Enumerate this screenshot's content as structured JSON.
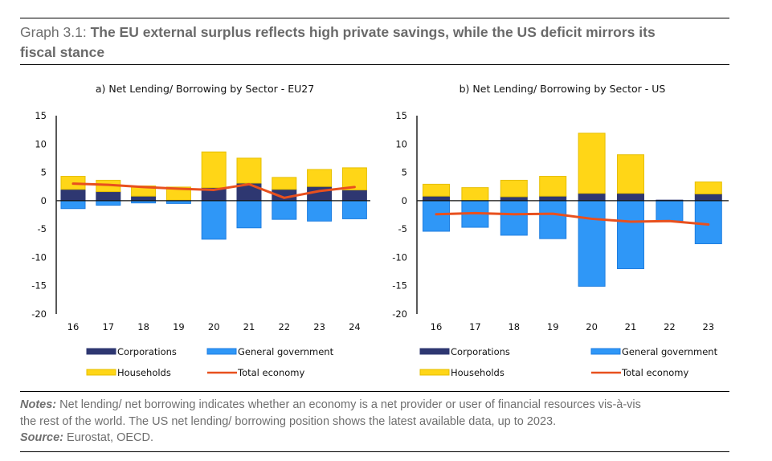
{
  "header": {
    "label": "Graph 3.1: ",
    "title_line1": "The EU external surplus reflects high private savings, while the US deficit mirrors its",
    "title_line2": "fiscal stance"
  },
  "footer": {
    "notes_label": "Notes:",
    "notes_text_line1": " Net lending/ net borrowing indicates whether an economy is a net provider or user of financial resources vis-à-vis",
    "notes_text_line2": "the rest of the world. The US net lending/ borrowing position shows the latest available data, up to 2023.",
    "source_label": "Source:",
    "source_text": " Eurostat, OECD."
  },
  "colors": {
    "corporations": "#2e3771",
    "general_government": "#2f97f7",
    "general_government_border": "#1f7ee0",
    "households": "#ffd617",
    "households_border": "#e6bf00",
    "total_economy": "#e8501e"
  },
  "chart_data": [
    {
      "type": "bar",
      "stacked": true,
      "title": "a) Net Lending/ Borrowing by Sector - EU27",
      "xlabel": "",
      "ylabel": "",
      "ylim": [
        -20,
        15
      ],
      "yticks": [
        15,
        10,
        5,
        0,
        -5,
        -10,
        -15,
        -20
      ],
      "categories": [
        "16",
        "17",
        "18",
        "19",
        "20",
        "21",
        "22",
        "23",
        "24"
      ],
      "series": [
        {
          "name": "Corporations",
          "kind": "bar",
          "values": [
            2.0,
            1.6,
            0.8,
            0.1,
            2.3,
            3.1,
            2.0,
            2.5,
            1.9
          ]
        },
        {
          "name": "Households",
          "kind": "bar",
          "values": [
            2.3,
            2.0,
            1.8,
            2.3,
            6.3,
            4.4,
            2.1,
            3.0,
            3.9
          ]
        },
        {
          "name": "General government",
          "kind": "bar",
          "values": [
            -1.4,
            -0.8,
            -0.4,
            -0.5,
            -6.8,
            -4.8,
            -3.3,
            -3.6,
            -3.2
          ]
        },
        {
          "name": "Total economy",
          "kind": "line",
          "values": [
            3.0,
            2.8,
            2.4,
            2.1,
            1.9,
            2.9,
            0.5,
            1.7,
            2.4
          ]
        }
      ],
      "legend": [
        "Corporations",
        "General government",
        "Households",
        "Total economy"
      ],
      "legend_placement": "bottom",
      "grid": false
    },
    {
      "type": "bar",
      "stacked": true,
      "title": "b) Net Lending/ Borrowing by Sector - US",
      "xlabel": "",
      "ylabel": "",
      "ylim": [
        -20,
        15
      ],
      "yticks": [
        15,
        10,
        5,
        0,
        -5,
        -10,
        -15,
        -20
      ],
      "categories": [
        "16",
        "17",
        "18",
        "19",
        "20",
        "21",
        "22",
        "23"
      ],
      "series": [
        {
          "name": "Corporations",
          "kind": "bar",
          "values": [
            0.8,
            0.0,
            0.7,
            0.8,
            1.3,
            1.3,
            0.1,
            1.2
          ]
        },
        {
          "name": "Households",
          "kind": "bar",
          "values": [
            2.1,
            2.3,
            2.9,
            3.5,
            10.6,
            6.8,
            0.0,
            2.1
          ]
        },
        {
          "name": "General government",
          "kind": "bar",
          "values": [
            -5.4,
            -4.7,
            -6.1,
            -6.7,
            -15.1,
            -12.0,
            -3.6,
            -7.6
          ]
        },
        {
          "name": "Total economy",
          "kind": "line",
          "values": [
            -2.4,
            -2.2,
            -2.4,
            -2.3,
            -3.2,
            -3.7,
            -3.6,
            -4.2
          ]
        }
      ],
      "legend": [
        "Corporations",
        "General government",
        "Households",
        "Total economy"
      ],
      "legend_placement": "bottom",
      "grid": false
    }
  ]
}
